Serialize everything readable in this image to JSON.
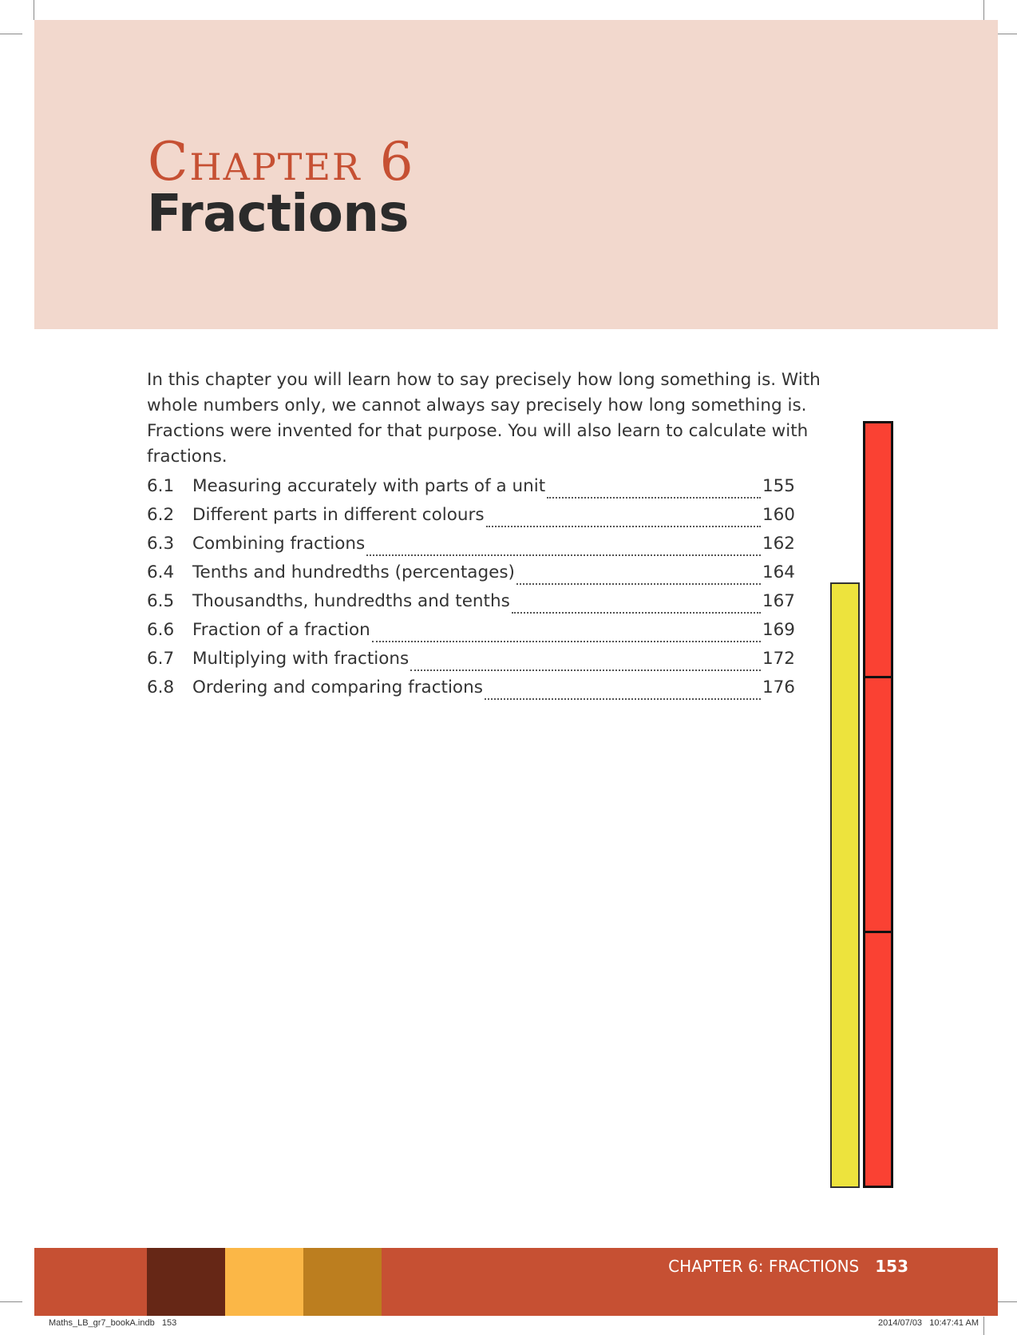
{
  "header": {
    "chapter_label": "Chapter 6",
    "chapter_title": "Fractions"
  },
  "intro": "In this chapter you will learn how to say precisely how long something is. With whole numbers only, we cannot always say precisely how long something is. Fractions were invented for that purpose. You will also learn to calculate with fractions.",
  "toc": [
    {
      "num": "6.1",
      "title": "Measuring accurately with parts of a unit",
      "page": "155"
    },
    {
      "num": "6.2",
      "title": "Different parts in different colours",
      "page": "160"
    },
    {
      "num": "6.3",
      "title": "Combining fractions",
      "page": "162"
    },
    {
      "num": "6.4",
      "title": "Tenths and hundredths (percentages)",
      "page": "164"
    },
    {
      "num": "6.5",
      "title": "Thousandths, hundredths and tenths",
      "page": "167"
    },
    {
      "num": "6.6",
      "title": "Fraction of a fraction",
      "page": "169"
    },
    {
      "num": "6.7",
      "title": "Multiplying with fractions",
      "page": "172"
    },
    {
      "num": "6.8",
      "title": "Ordering and comparing fractions",
      "page": "176"
    }
  ],
  "footer": {
    "running_head": "CHAPTER 6: FRACTIONS",
    "page_number": "153"
  },
  "slug": {
    "file": "Maths_LB_gr7_bookA.indb   153",
    "timestamp": "2014/07/03   10:47:41 AM"
  },
  "colors": {
    "header_band": "#f2d8cd",
    "accent": "#c65033",
    "bar_yellow": "#ede33d",
    "bar_red": "#fa4133",
    "swatch_dark": "#662716",
    "swatch_orange": "#fbb747",
    "swatch_ochre": "#bc7e1f"
  }
}
